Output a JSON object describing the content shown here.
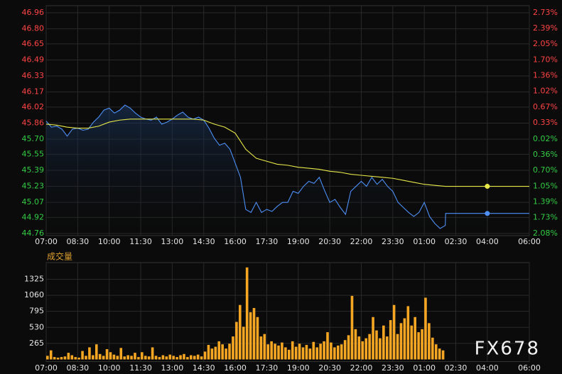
{
  "watermark": "FX678",
  "chart_data": [
    {
      "type": "line",
      "up_color": "#ff4444",
      "down_color": "#33cc44",
      "grid": true,
      "xlim": [
        0,
        1380
      ],
      "xticks": [
        {
          "value": 0,
          "label": "07:00"
        },
        {
          "value": 90,
          "label": "08:30"
        },
        {
          "value": 180,
          "label": "10:00"
        },
        {
          "value": 270,
          "label": "11:30"
        },
        {
          "value": 360,
          "label": "13:00"
        },
        {
          "value": 450,
          "label": "14:30"
        },
        {
          "value": 540,
          "label": "16:00"
        },
        {
          "value": 630,
          "label": "17:30"
        },
        {
          "value": 720,
          "label": "19:00"
        },
        {
          "value": 810,
          "label": "20:30"
        },
        {
          "value": 900,
          "label": "22:00"
        },
        {
          "value": 990,
          "label": "23:30"
        },
        {
          "value": 1080,
          "label": "01:00"
        },
        {
          "value": 1170,
          "label": "02:30"
        },
        {
          "value": 1260,
          "label": "04:00"
        },
        {
          "value": 1380,
          "label": "06:00"
        }
      ],
      "ylim": [
        44.76,
        46.96
      ],
      "yticks": [
        46.96,
        {
          "value": 46.8,
          "label": "46.80"
        },
        46.65,
        46.49,
        46.33,
        46.17,
        46.02,
        45.86,
        {
          "value": 45.7,
          "label": "45.70"
        },
        45.55,
        45.39,
        45.23,
        45.07,
        44.92,
        44.76
      ],
      "y2lim": [
        -2.08,
        2.73
      ],
      "y2ticks": [
        {
          "value": 2.73,
          "label": "2.73%"
        },
        {
          "value": 2.39,
          "label": "2.39%"
        },
        {
          "value": 2.05,
          "label": "2.05%"
        },
        {
          "value": 1.7,
          "label": "1.70%"
        },
        {
          "value": 1.36,
          "label": "1.36%"
        },
        {
          "value": 1.02,
          "label": "1.02%"
        },
        {
          "value": 0.67,
          "label": "0.67%"
        },
        {
          "value": 0.33,
          "label": "0.33%"
        },
        {
          "value": -0.02,
          "label": "0.02%"
        },
        {
          "value": -0.36,
          "label": "0.36%"
        },
        {
          "value": -0.7,
          "label": "0.70%"
        },
        {
          "value": -1.05,
          "label": "1.05%"
        },
        {
          "value": -1.39,
          "label": "1.39%"
        },
        {
          "value": -1.73,
          "label": "1.73%"
        },
        {
          "value": -2.08,
          "label": "2.08%"
        }
      ],
      "series": [
        {
          "color": "#4d8ff5",
          "x": [
            0,
            15,
            30,
            45,
            60,
            75,
            90,
            105,
            120,
            135,
            150,
            165,
            180,
            195,
            210,
            225,
            240,
            255,
            270,
            285,
            300,
            315,
            330,
            345,
            360,
            375,
            390,
            405,
            420,
            435,
            450,
            465,
            480,
            495,
            510,
            525,
            540,
            555,
            570,
            585,
            600,
            615,
            630,
            645,
            660,
            675,
            690,
            705,
            720,
            735,
            750,
            765,
            780,
            795,
            810,
            825,
            840,
            855,
            870,
            885,
            900,
            915,
            930,
            945,
            960,
            975,
            990,
            1005,
            1020,
            1035,
            1050,
            1065,
            1080,
            1095,
            1110,
            1125,
            1140,
            1141,
            1260
          ],
          "values": [
            45.88,
            45.82,
            45.83,
            45.8,
            45.73,
            45.8,
            45.81,
            45.79,
            45.8,
            45.87,
            45.92,
            45.99,
            46.01,
            45.96,
            45.99,
            46.04,
            46.01,
            45.96,
            45.92,
            45.9,
            45.89,
            45.92,
            45.85,
            45.87,
            45.9,
            45.94,
            45.97,
            45.92,
            45.9,
            45.92,
            45.89,
            45.81,
            45.71,
            45.64,
            45.66,
            45.6,
            45.46,
            45.32,
            45.0,
            44.97,
            45.07,
            44.97,
            45.0,
            44.98,
            45.03,
            45.07,
            45.07,
            45.18,
            45.16,
            45.23,
            45.28,
            45.26,
            45.32,
            45.19,
            45.07,
            45.1,
            45.02,
            44.95,
            45.18,
            45.23,
            45.28,
            45.23,
            45.32,
            45.25,
            45.3,
            45.23,
            45.18,
            45.07,
            45.02,
            44.97,
            44.93,
            44.97,
            45.07,
            44.93,
            44.86,
            44.81,
            44.84,
            44.96,
            44.96
          ]
        },
        {
          "color": "#e8e84a",
          "x": [
            0,
            30,
            60,
            90,
            120,
            150,
            180,
            210,
            240,
            270,
            300,
            330,
            360,
            390,
            420,
            450,
            480,
            510,
            540,
            570,
            600,
            630,
            660,
            690,
            720,
            750,
            780,
            810,
            840,
            870,
            900,
            930,
            960,
            990,
            1020,
            1050,
            1080,
            1110,
            1140,
            1260
          ],
          "values": [
            45.85,
            45.84,
            45.82,
            45.81,
            45.81,
            45.83,
            45.87,
            45.89,
            45.9,
            45.9,
            45.9,
            45.9,
            45.9,
            45.9,
            45.9,
            45.89,
            45.85,
            45.82,
            45.76,
            45.6,
            45.51,
            45.48,
            45.45,
            45.44,
            45.42,
            45.41,
            45.4,
            45.38,
            45.37,
            45.35,
            45.34,
            45.33,
            45.32,
            45.31,
            45.29,
            45.27,
            45.25,
            45.24,
            45.23,
            45.23
          ]
        }
      ]
    },
    {
      "type": "bar",
      "title": "成交量",
      "color": "#f5a623",
      "grid": true,
      "xlim": [
        0,
        1380
      ],
      "xticks": [
        {
          "value": 0,
          "label": "07:00"
        },
        {
          "value": 90,
          "label": "08:30"
        },
        {
          "value": 180,
          "label": "10:00"
        },
        {
          "value": 270,
          "label": "11:30"
        },
        {
          "value": 360,
          "label": "13:00"
        },
        {
          "value": 450,
          "label": "14:30"
        },
        {
          "value": 540,
          "label": "16:00"
        },
        {
          "value": 630,
          "label": "17:30"
        },
        {
          "value": 720,
          "label": "19:00"
        },
        {
          "value": 810,
          "label": "20:30"
        },
        {
          "value": 900,
          "label": "22:00"
        },
        {
          "value": 990,
          "label": "23:30"
        },
        {
          "value": 1080,
          "label": "01:00"
        },
        {
          "value": 1170,
          "label": "02:30"
        },
        {
          "value": 1260,
          "label": "04:00"
        },
        {
          "value": 1380,
          "label": "06:00"
        }
      ],
      "ylim": [
        0,
        1600
      ],
      "yticks": [
        265,
        530,
        795,
        1060,
        1325
      ],
      "x": [
        0,
        10,
        20,
        30,
        40,
        50,
        60,
        70,
        80,
        90,
        100,
        110,
        120,
        130,
        140,
        150,
        160,
        170,
        180,
        190,
        200,
        210,
        220,
        230,
        240,
        250,
        260,
        270,
        280,
        290,
        300,
        310,
        320,
        330,
        340,
        350,
        360,
        370,
        380,
        390,
        400,
        410,
        420,
        430,
        440,
        450,
        460,
        470,
        480,
        490,
        500,
        510,
        520,
        530,
        540,
        550,
        560,
        570,
        580,
        590,
        600,
        610,
        620,
        630,
        640,
        650,
        660,
        670,
        680,
        690,
        700,
        710,
        720,
        730,
        740,
        750,
        760,
        770,
        780,
        790,
        800,
        810,
        820,
        830,
        840,
        850,
        860,
        870,
        880,
        890,
        900,
        910,
        920,
        930,
        940,
        950,
        960,
        970,
        980,
        990,
        1000,
        1010,
        1020,
        1030,
        1040,
        1050,
        1060,
        1070,
        1080,
        1090,
        1100,
        1110,
        1120,
        1130
      ],
      "values": [
        60,
        150,
        40,
        30,
        40,
        50,
        110,
        70,
        40,
        30,
        140,
        60,
        200,
        70,
        250,
        90,
        60,
        170,
        120,
        80,
        60,
        190,
        50,
        70,
        60,
        110,
        40,
        120,
        60,
        50,
        200,
        60,
        40,
        70,
        50,
        80,
        60,
        40,
        70,
        90,
        40,
        70,
        60,
        80,
        50,
        130,
        240,
        180,
        210,
        300,
        250,
        180,
        260,
        380,
        620,
        900,
        540,
        1520,
        780,
        850,
        700,
        380,
        420,
        250,
        300,
        260,
        230,
        280,
        200,
        160,
        300,
        210,
        260,
        200,
        240,
        180,
        290,
        200,
        260,
        300,
        450,
        280,
        200,
        230,
        250,
        320,
        400,
        1050,
        500,
        380,
        300,
        350,
        420,
        700,
        480,
        350,
        560,
        380,
        650,
        900,
        420,
        600,
        680,
        880,
        560,
        700,
        450,
        500,
        1020,
        600,
        360,
        250,
        180,
        150
      ]
    }
  ]
}
